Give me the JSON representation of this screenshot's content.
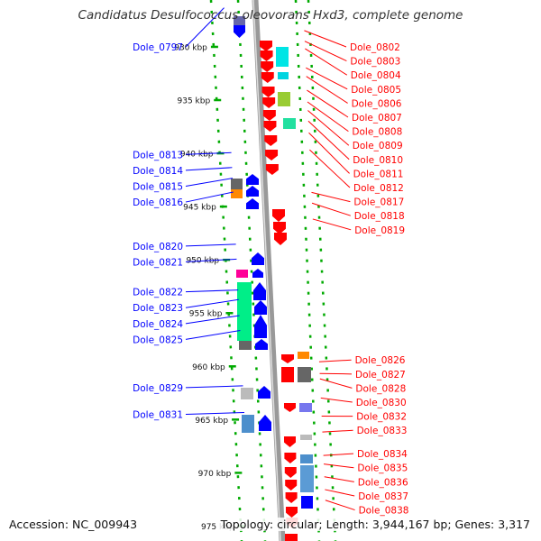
{
  "title": "Candidatus Desulfococcus oleovorans Hxd3, complete genome",
  "footer": {
    "accession": "Accession: NC_009943",
    "summary": "Topology: circular; Length: 3,944,167 bp; Genes: 3,317"
  },
  "map": {
    "unit": "kbp",
    "kbp_range": [
      925.6,
      976.4
    ],
    "ticks": [
      {
        "kbp": 930,
        "label": "930 kbp"
      },
      {
        "kbp": 935,
        "label": "935 kbp"
      },
      {
        "kbp": 940,
        "label": "940 kbp"
      },
      {
        "kbp": 945,
        "label": "945 kbp"
      },
      {
        "kbp": 950,
        "label": "950 kbp"
      },
      {
        "kbp": 955,
        "label": "955 kbp"
      },
      {
        "kbp": 960,
        "label": "960 kbp"
      },
      {
        "kbp": 965,
        "label": "965 kbp"
      },
      {
        "kbp": 970,
        "label": "970 kbp"
      },
      {
        "kbp": 975,
        "label": "975 kbp"
      }
    ]
  },
  "colors": {
    "forward_strand": "#0000ff",
    "reverse_strand": "#ff0000",
    "backbone": "#999999",
    "ruler": "#00aa00"
  },
  "genes": {
    "left": [
      {
        "name": "Dole_0797",
        "kbp": 926.5
      },
      {
        "name": "Dole_0813",
        "kbp": 940.1
      },
      {
        "name": "Dole_0814",
        "kbp": 941.5
      },
      {
        "name": "Dole_0815",
        "kbp": 942.5
      },
      {
        "name": "Dole_0816",
        "kbp": 943.8
      },
      {
        "name": "Dole_0820",
        "kbp": 948.7
      },
      {
        "name": "Dole_0821",
        "kbp": 950.1
      },
      {
        "name": "Dole_0822",
        "kbp": 953.0
      },
      {
        "name": "Dole_0823",
        "kbp": 953.9
      },
      {
        "name": "Dole_0824",
        "kbp": 955.4
      },
      {
        "name": "Dole_0825",
        "kbp": 956.8
      },
      {
        "name": "Dole_0829",
        "kbp": 962.0
      },
      {
        "name": "Dole_0831",
        "kbp": 964.5
      }
    ],
    "right": [
      {
        "name": "Dole_0802",
        "kbp": 928.3
      },
      {
        "name": "Dole_0803",
        "kbp": 929.3
      },
      {
        "name": "Dole_0804",
        "kbp": 930.0
      },
      {
        "name": "Dole_0805",
        "kbp": 931.8
      },
      {
        "name": "Dole_0806",
        "kbp": 932.6
      },
      {
        "name": "Dole_0807",
        "kbp": 933.9
      },
      {
        "name": "Dole_0808",
        "kbp": 935.0
      },
      {
        "name": "Dole_0809",
        "kbp": 935.8
      },
      {
        "name": "Dole_0810",
        "kbp": 936.8
      },
      {
        "name": "Dole_0811",
        "kbp": 937.9
      },
      {
        "name": "Dole_0812",
        "kbp": 939.5
      },
      {
        "name": "Dole_0817",
        "kbp": 943.5
      },
      {
        "name": "Dole_0818",
        "kbp": 944.5
      },
      {
        "name": "Dole_0819",
        "kbp": 946.0
      },
      {
        "name": "Dole_0826",
        "kbp": 959.4
      },
      {
        "name": "Dole_0827",
        "kbp": 960.5
      },
      {
        "name": "Dole_0828",
        "kbp": 961.0
      },
      {
        "name": "Dole_0830",
        "kbp": 962.8
      },
      {
        "name": "Dole_0832",
        "kbp": 964.5
      },
      {
        "name": "Dole_0833",
        "kbp": 966.0
      },
      {
        "name": "Dole_0834",
        "kbp": 968.2
      },
      {
        "name": "Dole_0835",
        "kbp": 969.0
      },
      {
        "name": "Dole_0836",
        "kbp": 970.2
      },
      {
        "name": "Dole_0837",
        "kbp": 971.4
      },
      {
        "name": "Dole_0838",
        "kbp": 972.4
      }
    ]
  }
}
